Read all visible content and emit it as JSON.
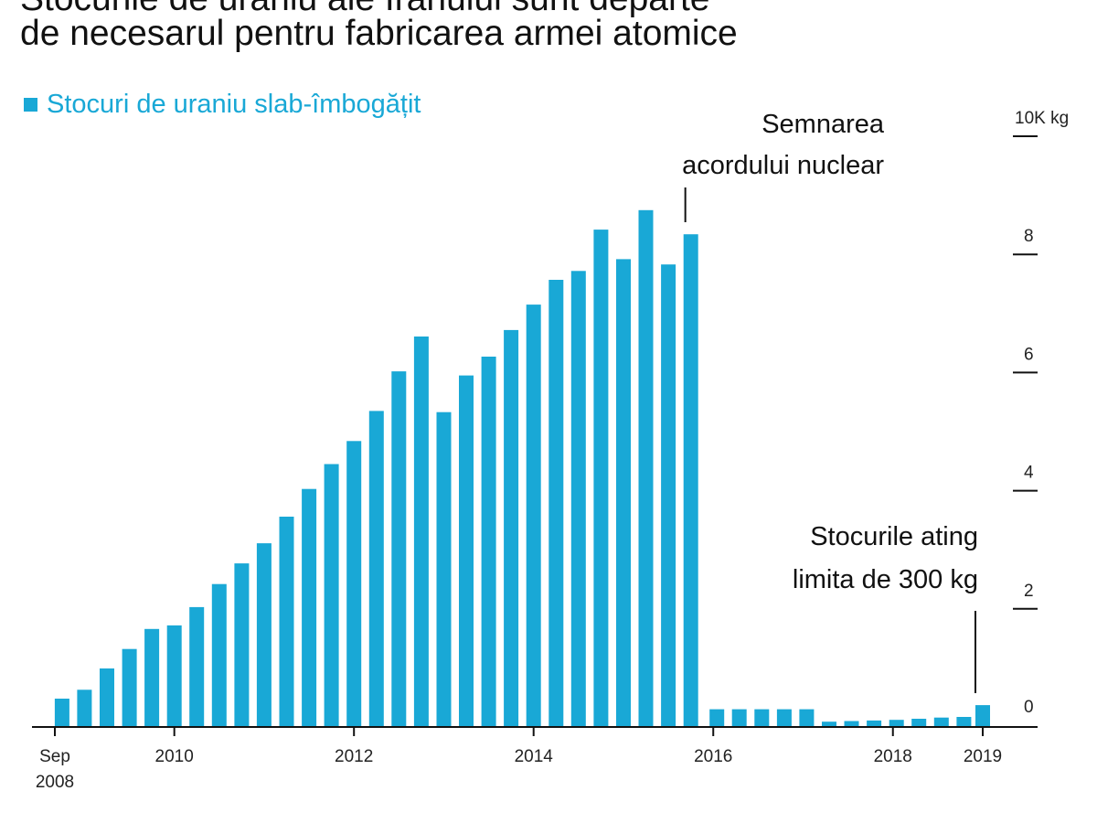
{
  "chart_data": {
    "type": "bar",
    "title": "Stocurile de uraniu ale Iranului sunt departe",
    "subtitle": "de necesarul pentru fabricarea armei atomice",
    "legend": "Stocuri de uraniu slab-îmbogățit",
    "legend_position": "top-left",
    "color": "#19a8d6",
    "y_axis_position": "right",
    "ylim": [
      0,
      10000
    ],
    "y_ticks": [
      {
        "value": 10000,
        "label": "10K kg"
      },
      {
        "value": 8000,
        "label": "8"
      },
      {
        "value": 6000,
        "label": "6"
      },
      {
        "value": 4000,
        "label": "4"
      },
      {
        "value": 2000,
        "label": "2"
      },
      {
        "value": 0,
        "label": "0"
      }
    ],
    "xlim": [
      2008.67,
      2019.2
    ],
    "x_ticks": [
      {
        "x": 2008.67,
        "label": "Sep",
        "label2": "2008"
      },
      {
        "x": 2010,
        "label": "2010"
      },
      {
        "x": 2012,
        "label": "2012"
      },
      {
        "x": 2014,
        "label": "2014"
      },
      {
        "x": 2016,
        "label": "2016"
      },
      {
        "x": 2018,
        "label": "2018"
      },
      {
        "x": 2019,
        "label": "2019"
      }
    ],
    "grid": false,
    "x": [
      2008.75,
      2009.0,
      2009.25,
      2009.5,
      2009.75,
      2010.0,
      2010.25,
      2010.5,
      2010.75,
      2011.0,
      2011.25,
      2011.5,
      2011.75,
      2012.0,
      2012.25,
      2012.5,
      2012.75,
      2013.0,
      2013.25,
      2013.5,
      2013.75,
      2014.0,
      2014.25,
      2014.5,
      2014.75,
      2015.0,
      2015.25,
      2015.5,
      2015.75,
      2016.04,
      2016.29,
      2016.54,
      2016.79,
      2017.04,
      2017.29,
      2017.54,
      2017.79,
      2018.04,
      2018.29,
      2018.54,
      2018.79,
      2019.0
    ],
    "values": [
      480,
      630,
      990,
      1320,
      1660,
      1720,
      2030,
      2420,
      2770,
      3110,
      3560,
      4030,
      4450,
      4840,
      5350,
      6020,
      6610,
      5330,
      5950,
      6270,
      6720,
      7150,
      7570,
      7720,
      8420,
      7920,
      8750,
      7830,
      8340,
      300,
      300,
      300,
      300,
      300,
      90,
      100,
      110,
      120,
      140,
      160,
      170,
      370
    ],
    "annotations": [
      {
        "lines": [
          "Semnarea",
          "acordului nuclear"
        ],
        "x": 2015.75
      },
      {
        "lines": [
          "Stocurile ating",
          "limita de 300 kg"
        ],
        "x": 2019.0
      }
    ]
  }
}
